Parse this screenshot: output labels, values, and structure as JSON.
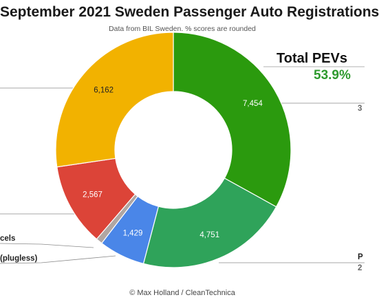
{
  "header": {
    "title": "September 2021 Sweden Passenger Auto Registrations",
    "subtitle": "Data from BIL Sweden. % scores are rounded"
  },
  "callout": {
    "label": "Total PEVs",
    "value": "53.9%",
    "value_color": "#2e9a2e"
  },
  "footer": {
    "credit": "© Max Holland / CleanTechnica"
  },
  "partial_labels": {
    "cels": "cels",
    "plugless": "(plugless)",
    "right_top": "3",
    "right_p": "P",
    "right_p_sub": "2"
  },
  "chart_data": {
    "type": "pie",
    "donut": true,
    "title": "September 2021 Sweden Passenger Auto Registrations",
    "slices": [
      {
        "value": 7454,
        "label": "7,454",
        "color": "#2b9a0e"
      },
      {
        "value": 4751,
        "label": "4,751",
        "color": "#2fa35a"
      },
      {
        "value": 1429,
        "label": "1,429",
        "color": "#4a86e8"
      },
      {
        "value": 200,
        "label": "",
        "color": "#b0a6a2"
      },
      {
        "value": 2567,
        "label": "2,567",
        "color": "#dc4438"
      },
      {
        "value": 6162,
        "label": "6,162",
        "color": "#f2b200"
      }
    ]
  }
}
